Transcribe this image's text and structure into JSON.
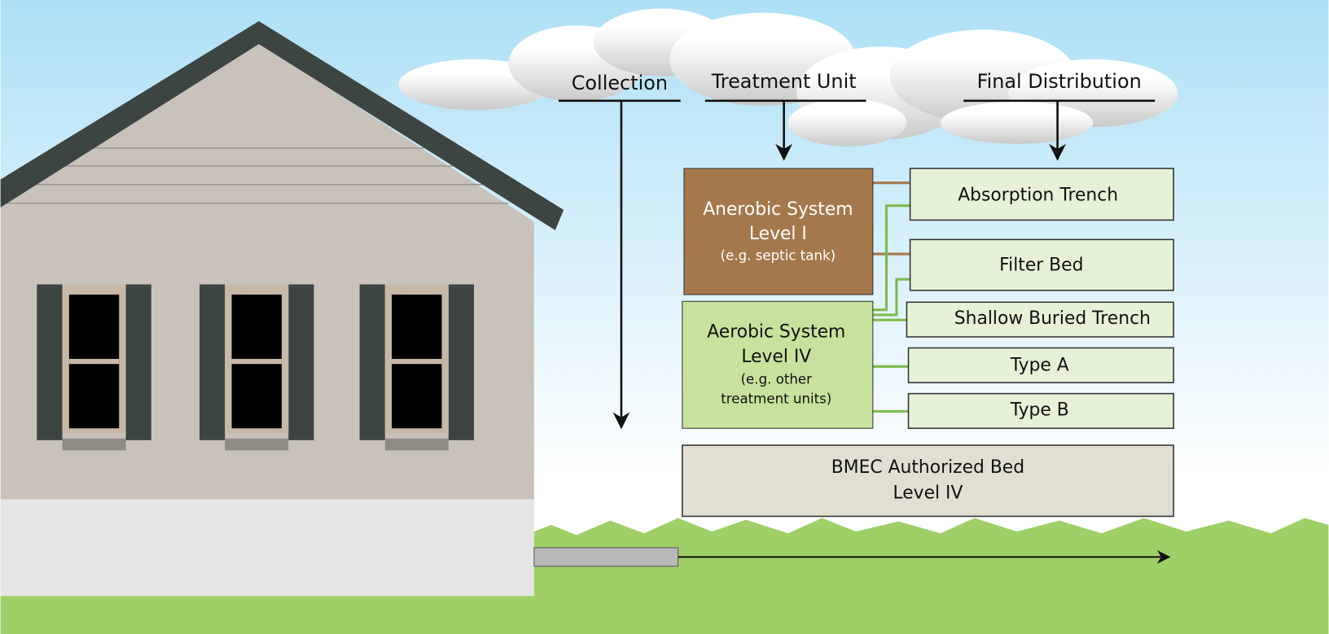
{
  "headers": [
    "Collection",
    "Treatment Unit",
    "Final Distribution"
  ],
  "treatment_units": [
    {
      "lines": [
        "Anerobic System",
        "Level I",
        "(e.g. septic tank)"
      ]
    },
    {
      "lines": [
        "Aerobic System",
        "Level IV",
        "(e.g. other",
        "treatment units)"
      ]
    }
  ],
  "distribution": [
    "Absorption Trench",
    "Filter Bed",
    "Shallow Buried Trench",
    "Type A",
    "Type B"
  ],
  "bed": {
    "lines": [
      "BMEC Authorized Bed",
      "Level IV"
    ]
  }
}
